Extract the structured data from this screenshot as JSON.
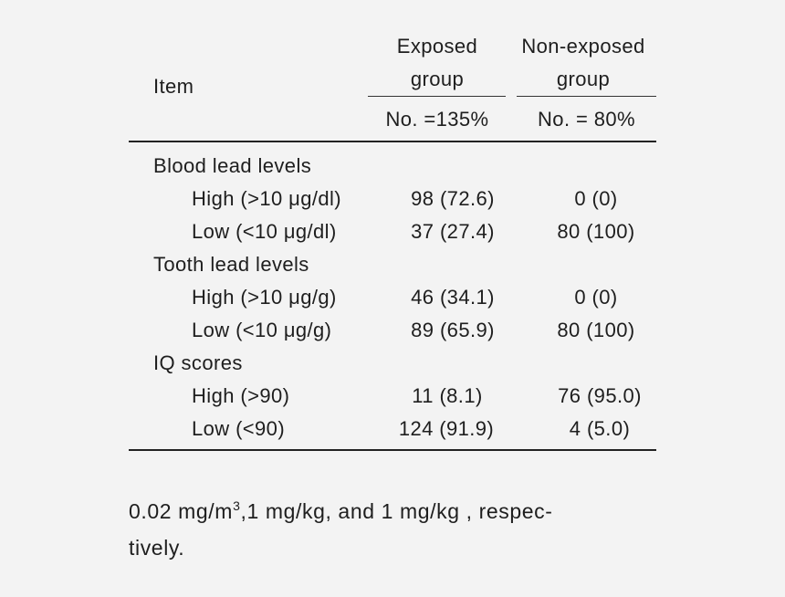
{
  "table": {
    "header": {
      "item": "Item",
      "exposed_line1": "Exposed",
      "exposed_line2": "group",
      "nonexposed_line1": "Non-exposed",
      "nonexposed_line2": "group",
      "exposed_n": "No. =135%",
      "nonexposed_n": "No. = 80%"
    },
    "sections": [
      {
        "label": "Blood lead levels",
        "rows": [
          {
            "label": "High (>10 μg/dl)",
            "exposed": "98 (72.6)",
            "nonexposed": "0 (0)"
          },
          {
            "label": "Low (<10 μg/dl)",
            "exposed": "37 (27.4)",
            "nonexposed": "80 (100)"
          }
        ]
      },
      {
        "label": "Tooth lead levels",
        "rows": [
          {
            "label": "High (>10 μg/g)",
            "exposed": "46 (34.1)",
            "nonexposed": "0 (0)"
          },
          {
            "label": "Low (<10 μg/g)",
            "exposed": "89 (65.9)",
            "nonexposed": "80 (100)"
          }
        ]
      },
      {
        "label": "IQ scores",
        "rows": [
          {
            "label": "High (>90)",
            "exposed": "11 (8.1)",
            "nonexposed": "76 (95.0)"
          },
          {
            "label": "Low (<90)",
            "exposed": "124 (91.9)",
            "nonexposed": "4 (5.0)"
          }
        ]
      }
    ]
  },
  "footnote": {
    "part1": "0.02 mg/m",
    "sup": "3",
    "part2": ",1 mg/kg, and 1 mg/kg , respec-",
    "line2": "tively."
  }
}
